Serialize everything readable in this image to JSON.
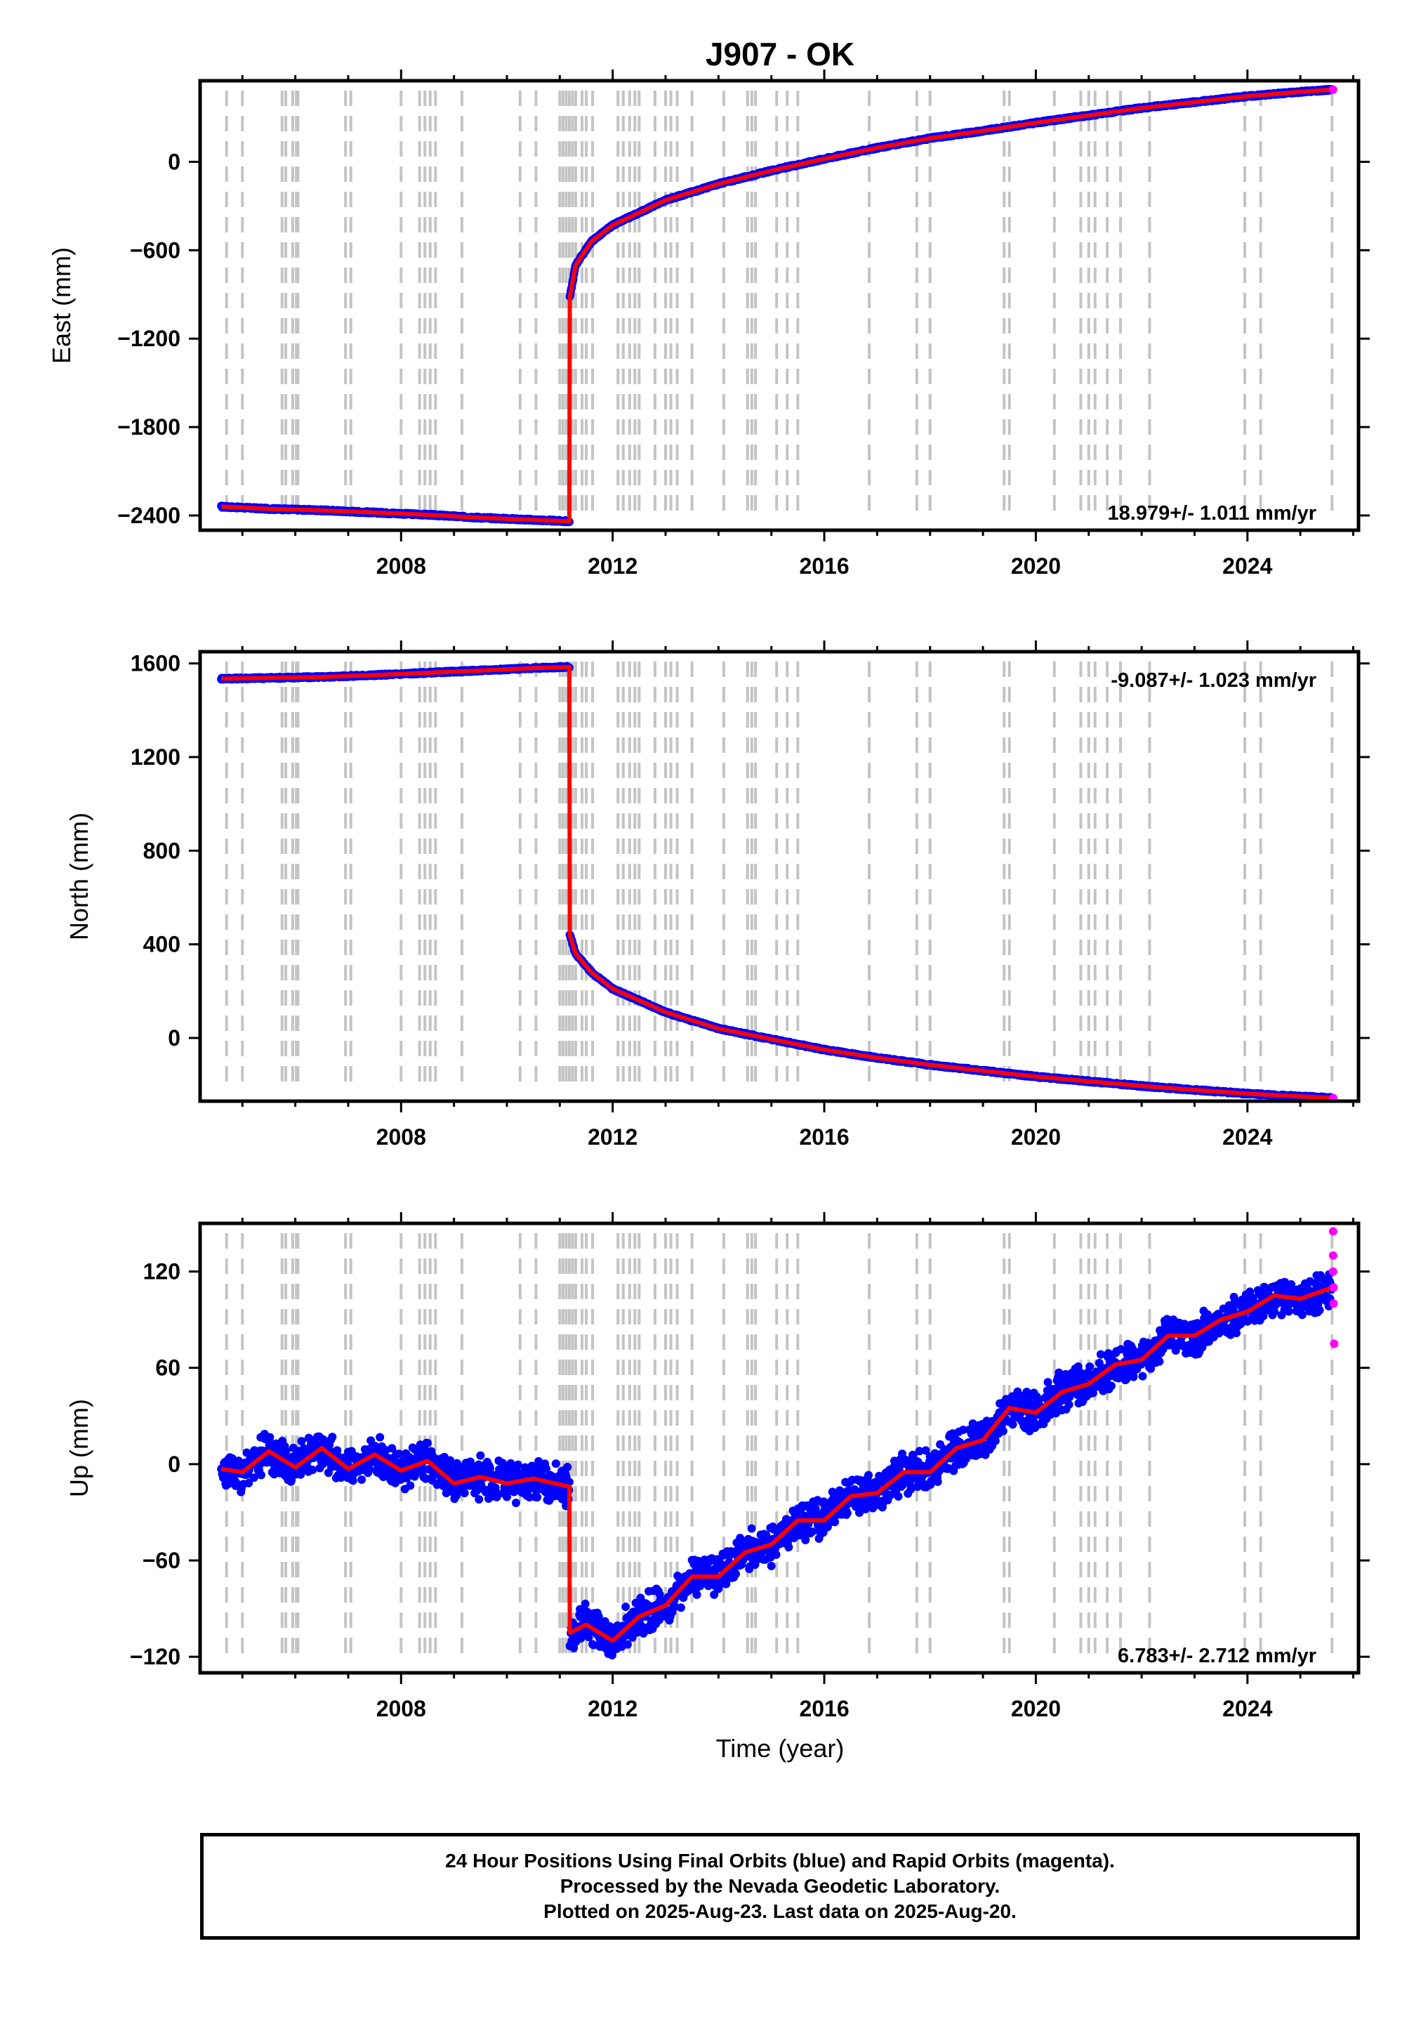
{
  "title": "J907 - OK",
  "xlabel": "Time (year)",
  "chart_data": [
    {
      "type": "scatter",
      "name_panel": "east",
      "ylabel": "East (mm)",
      "xlim": [
        2004.2,
        2026.1
      ],
      "ylim": [
        -2500,
        550
      ],
      "xticks": [
        2008,
        2012,
        2016,
        2020,
        2024
      ],
      "yticks": [
        -2400,
        -1800,
        -1200,
        -600,
        0
      ],
      "rate_label": "18.979+/- 1.011 mm/yr",
      "series": [
        {
          "name": "Final Orbits",
          "color": "#0000ff",
          "points": [
            [
              2004.6,
              -2340
            ],
            [
              2005.5,
              -2355
            ],
            [
              2006.5,
              -2365
            ],
            [
              2007.5,
              -2380
            ],
            [
              2008.5,
              -2395
            ],
            [
              2009.5,
              -2415
            ],
            [
              2010.5,
              -2430
            ],
            [
              2011.18,
              -2440
            ],
            [
              2011.19,
              -920
            ],
            [
              2011.3,
              -700
            ],
            [
              2011.6,
              -540
            ],
            [
              2012.0,
              -430
            ],
            [
              2013.0,
              -260
            ],
            [
              2014.0,
              -150
            ],
            [
              2015.0,
              -60
            ],
            [
              2016.0,
              20
            ],
            [
              2017.0,
              95
            ],
            [
              2018.0,
              160
            ],
            [
              2019.0,
              210
            ],
            [
              2020.0,
              265
            ],
            [
              2021.0,
              315
            ],
            [
              2022.0,
              365
            ],
            [
              2023.0,
              405
            ],
            [
              2024.0,
              445
            ],
            [
              2025.0,
              475
            ],
            [
              2025.6,
              490
            ]
          ]
        },
        {
          "name": "Rapid Orbits",
          "color": "#ff00ff",
          "points": [
            [
              2025.62,
              490
            ]
          ]
        }
      ]
    },
    {
      "type": "scatter",
      "name_panel": "north",
      "ylabel": "North (mm)",
      "xlim": [
        2004.2,
        2026.1
      ],
      "ylim": [
        -270,
        1650
      ],
      "xticks": [
        2008,
        2012,
        2016,
        2020,
        2024
      ],
      "yticks": [
        0,
        400,
        800,
        1200,
        1600
      ],
      "rate_label": "-9.087+/- 1.023 mm/yr",
      "series": [
        {
          "name": "Final Orbits",
          "color": "#0000ff",
          "points": [
            [
              2004.6,
              1535
            ],
            [
              2005.5,
              1538
            ],
            [
              2006.5,
              1542
            ],
            [
              2007.5,
              1550
            ],
            [
              2008.5,
              1560
            ],
            [
              2009.5,
              1570
            ],
            [
              2010.5,
              1580
            ],
            [
              2011.18,
              1585
            ],
            [
              2011.19,
              440
            ],
            [
              2011.3,
              360
            ],
            [
              2011.6,
              280
            ],
            [
              2012.0,
              210
            ],
            [
              2013.0,
              110
            ],
            [
              2014.0,
              40
            ],
            [
              2015.0,
              -5
            ],
            [
              2016.0,
              -50
            ],
            [
              2017.0,
              -85
            ],
            [
              2018.0,
              -115
            ],
            [
              2019.0,
              -140
            ],
            [
              2020.0,
              -165
            ],
            [
              2021.0,
              -185
            ],
            [
              2022.0,
              -205
            ],
            [
              2023.0,
              -222
            ],
            [
              2024.0,
              -238
            ],
            [
              2025.0,
              -250
            ],
            [
              2025.6,
              -256
            ]
          ]
        },
        {
          "name": "Rapid Orbits",
          "color": "#ff00ff",
          "points": [
            [
              2025.62,
              -256
            ]
          ]
        }
      ]
    },
    {
      "type": "scatter",
      "name_panel": "up",
      "ylabel": "Up (mm)",
      "xlim": [
        2004.2,
        2026.1
      ],
      "ylim": [
        -130,
        150
      ],
      "xticks": [
        2008,
        2012,
        2016,
        2020,
        2024
      ],
      "yticks": [
        -120,
        -60,
        0,
        60,
        120
      ],
      "rate_label": "6.783+/- 2.712 mm/yr",
      "series": [
        {
          "name": "Final Orbits",
          "color": "#0000ff",
          "points": [
            [
              2004.6,
              -3
            ],
            [
              2005.0,
              -5
            ],
            [
              2005.5,
              8
            ],
            [
              2006.0,
              -2
            ],
            [
              2006.5,
              10
            ],
            [
              2007.0,
              -3
            ],
            [
              2007.5,
              6
            ],
            [
              2008.0,
              -4
            ],
            [
              2008.5,
              2
            ],
            [
              2009.0,
              -12
            ],
            [
              2009.5,
              -8
            ],
            [
              2010.0,
              -12
            ],
            [
              2010.5,
              -9
            ],
            [
              2011.18,
              -14
            ],
            [
              2011.19,
              -105
            ],
            [
              2011.5,
              -100
            ],
            [
              2012.0,
              -110
            ],
            [
              2012.5,
              -95
            ],
            [
              2013.0,
              -88
            ],
            [
              2013.5,
              -70
            ],
            [
              2014.0,
              -70
            ],
            [
              2014.5,
              -55
            ],
            [
              2015.0,
              -50
            ],
            [
              2015.5,
              -35
            ],
            [
              2016.0,
              -35
            ],
            [
              2016.5,
              -20
            ],
            [
              2017.0,
              -18
            ],
            [
              2017.5,
              -5
            ],
            [
              2018.0,
              -5
            ],
            [
              2018.5,
              10
            ],
            [
              2019.0,
              15
            ],
            [
              2019.5,
              35
            ],
            [
              2020.0,
              32
            ],
            [
              2020.5,
              45
            ],
            [
              2021.0,
              50
            ],
            [
              2021.5,
              62
            ],
            [
              2022.0,
              65
            ],
            [
              2022.5,
              80
            ],
            [
              2023.0,
              80
            ],
            [
              2023.5,
              90
            ],
            [
              2024.0,
              95
            ],
            [
              2024.5,
              105
            ],
            [
              2025.0,
              103
            ],
            [
              2025.6,
              110
            ]
          ]
        },
        {
          "name": "Rapid Orbits",
          "color": "#ff00ff",
          "points": [
            [
              2025.62,
              145
            ],
            [
              2025.62,
              130
            ],
            [
              2025.62,
              120
            ],
            [
              2025.63,
              110
            ],
            [
              2025.63,
              100
            ],
            [
              2025.64,
              75
            ]
          ]
        }
      ]
    }
  ],
  "footer": {
    "line1": "24 Hour Positions Using Final Orbits (blue) and Rapid Orbits (magenta).",
    "line2": "Processed by the Nevada Geodetic Laboratory.",
    "line3": "Plotted on 2025-Aug-23. Last data on 2025-Aug-20."
  }
}
